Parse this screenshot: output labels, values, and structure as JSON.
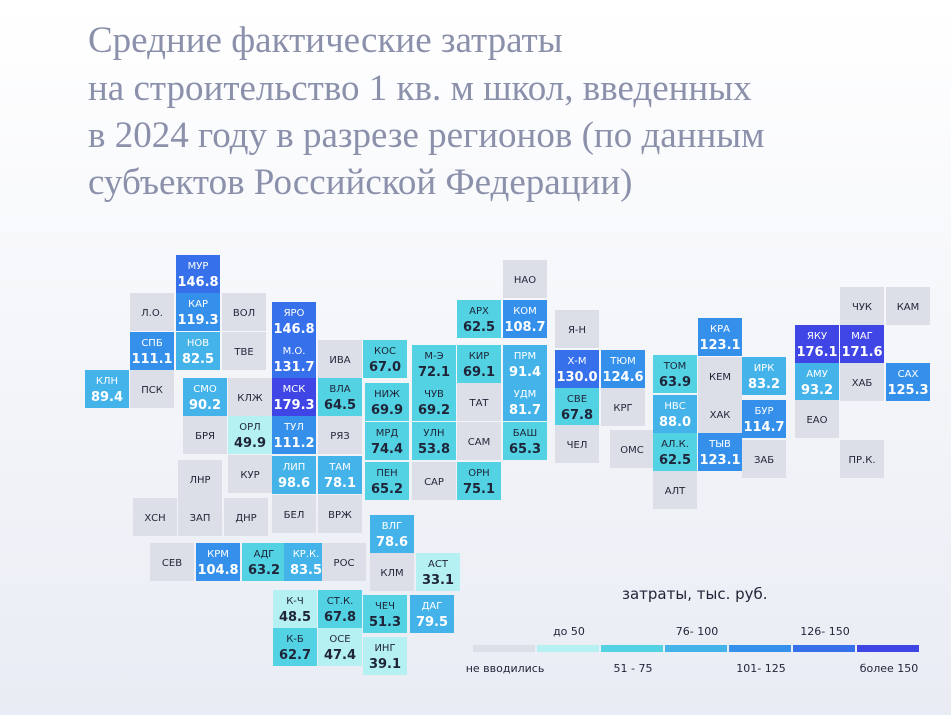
{
  "title": [
    "Средние фактические затраты",
    "на строительство 1 кв. м школ, введенных",
    "в 2024 году в разрезе регионов (по данным",
    "субъектов Российской Федерации)"
  ],
  "legend": {
    "title": "затраты, тыс. руб.",
    "items": [
      {
        "label": "не вводились",
        "color": "#dcdfe7"
      },
      {
        "label": "до 50",
        "color": "#b5f1f3"
      },
      {
        "label": "51 - 75",
        "color": "#52d2e3"
      },
      {
        "label": "76- 100",
        "color": "#44b3ea"
      },
      {
        "label": "101- 125",
        "color": "#3590ec"
      },
      {
        "label": "126- 150",
        "color": "#3670ea"
      },
      {
        "label": "более 150",
        "color": "#4045e6"
      }
    ]
  },
  "tiles": [
    {
      "label": "МУР",
      "value": "146.8",
      "color": "#3670ea"
    },
    {
      "label": "НАО",
      "color": "#dcdfe7"
    },
    {
      "label": "Л.О.",
      "color": "#dcdfe7"
    },
    {
      "label": "КАР",
      "value": "119.3",
      "color": "#3590ec"
    },
    {
      "label": "ВОЛ",
      "color": "#dcdfe7"
    },
    {
      "label": "СПБ",
      "value": "111.1",
      "color": "#3590ec"
    },
    {
      "label": "НОВ",
      "value": "82.5",
      "color": "#44b3ea"
    },
    {
      "label": "ТВЕ",
      "color": "#dcdfe7"
    },
    {
      "label": "КЛН",
      "value": "89.4",
      "color": "#44b3ea"
    },
    {
      "label": "ПСК",
      "color": "#dcdfe7"
    },
    {
      "label": "СМО",
      "value": "90.2",
      "color": "#44b3ea"
    },
    {
      "label": "КЛЖ",
      "color": "#dcdfe7"
    },
    {
      "label": "БРЯ",
      "color": "#dcdfe7"
    },
    {
      "label": "ОРЛ",
      "value": "49.9",
      "color": "#b5f1f3"
    },
    {
      "label": "ЛНР",
      "color": "#dcdfe7"
    },
    {
      "label": "КУР",
      "color": "#dcdfe7"
    },
    {
      "label": "ХСН",
      "color": "#dcdfe7"
    },
    {
      "label": "ЗАП",
      "color": "#dcdfe7"
    },
    {
      "label": "ДНР",
      "color": "#dcdfe7"
    },
    {
      "label": "СЕВ",
      "color": "#dcdfe7"
    },
    {
      "label": "КРМ",
      "value": "104.8",
      "color": "#3590ec"
    },
    {
      "label": "АДГ",
      "value": "63.2",
      "color": "#52d2e3"
    },
    {
      "label": "КР.К.",
      "value": "83.5",
      "color": "#44b3ea"
    },
    {
      "label": "РОС",
      "color": "#dcdfe7"
    },
    {
      "label": "ЯРО",
      "value": "146.8",
      "color": "#3670ea"
    },
    {
      "label": "М.О.",
      "value": "131.7",
      "color": "#3670ea"
    },
    {
      "label": "МСК",
      "value": "179.3",
      "color": "#4045e6"
    },
    {
      "label": "ТУЛ",
      "value": "111.2",
      "color": "#3590ec"
    },
    {
      "label": "ЛИП",
      "value": "98.6",
      "color": "#44b3ea"
    },
    {
      "label": "БЕЛ",
      "color": "#dcdfe7"
    },
    {
      "label": "ИВА",
      "color": "#dcdfe7"
    },
    {
      "label": "ВЛА",
      "value": "64.5",
      "color": "#52d2e3"
    },
    {
      "label": "РЯЗ",
      "color": "#dcdfe7"
    },
    {
      "label": "ТАМ",
      "value": "78.1",
      "color": "#44b3ea"
    },
    {
      "label": "ВРЖ",
      "color": "#dcdfe7"
    },
    {
      "label": "КОС",
      "value": "67.0",
      "color": "#52d2e3"
    },
    {
      "label": "НИЖ",
      "value": "69.9",
      "color": "#52d2e3"
    },
    {
      "label": "МРД",
      "value": "74.4",
      "color": "#52d2e3"
    },
    {
      "label": "ПЕН",
      "value": "65.2",
      "color": "#52d2e3"
    },
    {
      "label": "ВЛГ",
      "value": "78.6",
      "color": "#44b3ea"
    },
    {
      "label": "КЛМ",
      "color": "#dcdfe7"
    },
    {
      "label": "АСТ",
      "value": "33.1",
      "color": "#b5f1f3"
    },
    {
      "label": "М-Э",
      "value": "72.1",
      "color": "#52d2e3"
    },
    {
      "label": "ЧУВ",
      "value": "69.2",
      "color": "#52d2e3"
    },
    {
      "label": "УЛН",
      "value": "53.8",
      "color": "#52d2e3"
    },
    {
      "label": "САР",
      "color": "#dcdfe7"
    },
    {
      "label": "АРХ",
      "value": "62.5",
      "color": "#52d2e3"
    },
    {
      "label": "КИР",
      "value": "69.1",
      "color": "#52d2e3"
    },
    {
      "label": "ТАТ",
      "color": "#dcdfe7"
    },
    {
      "label": "САМ",
      "color": "#dcdfe7"
    },
    {
      "label": "ОРН",
      "value": "75.1",
      "color": "#52d2e3"
    },
    {
      "label": "КОМ",
      "value": "108.7",
      "color": "#3590ec"
    },
    {
      "label": "ПРМ",
      "value": "91.4",
      "color": "#44b3ea"
    },
    {
      "label": "УДМ",
      "value": "81.7",
      "color": "#44b3ea"
    },
    {
      "label": "БАШ",
      "value": "65.3",
      "color": "#52d2e3"
    },
    {
      "label": "Я-Н",
      "color": "#dcdfe7"
    },
    {
      "label": "Х-М",
      "value": "130.0",
      "color": "#3670ea"
    },
    {
      "label": "СВЕ",
      "value": "67.8",
      "color": "#52d2e3"
    },
    {
      "label": "ЧЕЛ",
      "color": "#dcdfe7"
    },
    {
      "label": "ТЮМ",
      "value": "124.6",
      "color": "#3590ec"
    },
    {
      "label": "КРГ",
      "color": "#dcdfe7"
    },
    {
      "label": "ОМС",
      "color": "#dcdfe7"
    },
    {
      "label": "ТОМ",
      "value": "63.9",
      "color": "#52d2e3"
    },
    {
      "label": "НВС",
      "value": "88.0",
      "color": "#44b3ea"
    },
    {
      "label": "АЛ.К.",
      "value": "62.5",
      "color": "#52d2e3"
    },
    {
      "label": "АЛТ",
      "color": "#dcdfe7"
    },
    {
      "label": "КРА",
      "value": "123.1",
      "color": "#3590ec"
    },
    {
      "label": "КЕМ",
      "color": "#dcdfe7"
    },
    {
      "label": "ХАК",
      "color": "#dcdfe7"
    },
    {
      "label": "ТЫВ",
      "value": "123.1",
      "color": "#3590ec"
    },
    {
      "label": "ИРК",
      "value": "83.2",
      "color": "#44b3ea"
    },
    {
      "label": "БУР",
      "value": "114.7",
      "color": "#3590ec"
    },
    {
      "label": "ЗАБ",
      "color": "#dcdfe7"
    },
    {
      "label": "ЯКУ",
      "value": "176.1",
      "color": "#4045e6"
    },
    {
      "label": "АМУ",
      "value": "93.2",
      "color": "#44b3ea"
    },
    {
      "label": "ЕАО",
      "color": "#dcdfe7"
    },
    {
      "label": "ЧУК",
      "color": "#dcdfe7"
    },
    {
      "label": "МАГ",
      "value": "171.6",
      "color": "#4045e6"
    },
    {
      "label": "ХАБ",
      "color": "#dcdfe7"
    },
    {
      "label": "ПР.К.",
      "color": "#dcdfe7"
    },
    {
      "label": "КАМ",
      "color": "#dcdfe7"
    },
    {
      "label": "САХ",
      "value": "125.3",
      "color": "#3590ec"
    },
    {
      "label": "К-Ч",
      "value": "48.5",
      "color": "#b5f1f3"
    },
    {
      "label": "К-Б",
      "value": "62.7",
      "color": "#52d2e3"
    },
    {
      "label": "СТ.К.",
      "value": "67.8",
      "color": "#52d2e3"
    },
    {
      "label": "ОСЕ",
      "value": "47.4",
      "color": "#b5f1f3"
    },
    {
      "label": "ЧЕЧ",
      "value": "51.3",
      "color": "#52d2e3"
    },
    {
      "label": "ИНГ",
      "value": "39.1",
      "color": "#b5f1f3"
    },
    {
      "label": "ДАГ",
      "value": "79.5",
      "color": "#44b3ea"
    }
  ]
}
